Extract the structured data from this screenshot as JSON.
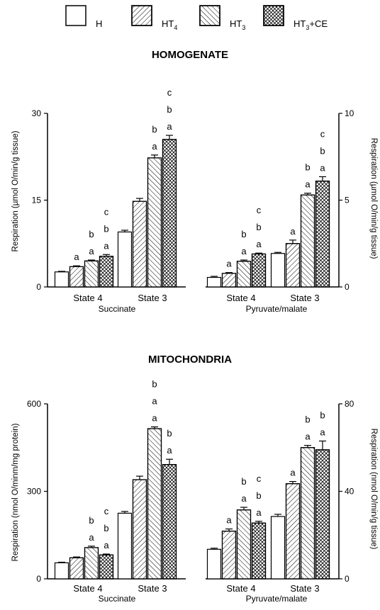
{
  "legend": [
    {
      "key": "H",
      "label": "H",
      "pattern": "none"
    },
    {
      "key": "HT4",
      "label": "HT",
      "sub": "4",
      "pattern": "diag-right"
    },
    {
      "key": "HT3",
      "label": "HT",
      "sub": "3",
      "pattern": "diag-left"
    },
    {
      "key": "HT3CE",
      "label": "HT",
      "sub": "3",
      "suffix": "+CE",
      "pattern": "crosshatch"
    }
  ],
  "chart_data": [
    {
      "type": "bar",
      "title": "HOMOGENATE",
      "ylabel": "Respiration (µmol O/min/g tissue)",
      "ylabel_right": "Respiration (µmol O/min/g tissue)",
      "ylim": [
        0,
        30
      ],
      "ylim_right": [
        0,
        10
      ],
      "yticks": [
        0,
        15,
        30
      ],
      "yticks_right": [
        0,
        5,
        10
      ],
      "series_names": [
        "H",
        "HT4",
        "HT3",
        "HT3+CE"
      ],
      "groups": [
        {
          "substrate": "Succinate",
          "state": "State 4",
          "axis": "left",
          "values": [
            2.6,
            3.5,
            4.5,
            5.3
          ],
          "errors": [
            0.1,
            0.15,
            0.15,
            0.3
          ],
          "letters": [
            [],
            [
              "a"
            ],
            [
              "b",
              "a"
            ],
            [
              "c",
              "b",
              "a"
            ]
          ]
        },
        {
          "substrate": "Succinate",
          "state": "State 3",
          "axis": "left",
          "values": [
            9.5,
            14.8,
            22.3,
            25.5
          ],
          "errors": [
            0.3,
            0.5,
            0.5,
            0.7
          ],
          "letters": [
            [],
            [],
            [
              "b",
              "a"
            ],
            [
              "c",
              "b",
              "a"
            ]
          ]
        },
        {
          "substrate": "Pyruvate/malate",
          "state": "State 4",
          "axis": "right",
          "values": [
            0.55,
            0.78,
            1.48,
            1.9
          ],
          "errors": [
            0.06,
            0.05,
            0.07,
            0.05
          ],
          "letters": [
            [],
            [
              "a"
            ],
            [
              "b",
              "a"
            ],
            [
              "c",
              "b",
              "a"
            ]
          ]
        },
        {
          "substrate": "Pyruvate/malate",
          "state": "State 3",
          "axis": "right",
          "values": [
            1.93,
            2.5,
            5.3,
            6.1
          ],
          "errors": [
            0.06,
            0.2,
            0.1,
            0.25
          ],
          "letters": [
            [],
            [
              "a"
            ],
            [
              "b",
              "a"
            ],
            [
              "c",
              "b",
              "a"
            ]
          ]
        }
      ],
      "categories": [
        "State 4",
        "State 3",
        "State 4",
        "State 3"
      ],
      "substrates": [
        "Succinate",
        "Pyruvate/malate"
      ]
    },
    {
      "type": "bar",
      "title": "MITOCHONDRIA",
      "ylabel": "Respiration (nmol O/minm/mg protein)",
      "ylabel_right": "Respiration (nmol O/min/g tissue)",
      "ylim": [
        0,
        600
      ],
      "ylim_right": [
        0,
        80
      ],
      "yticks": [
        0,
        300,
        600
      ],
      "yticks_right": [
        0,
        40,
        80
      ],
      "series_names": [
        "H",
        "HT4",
        "HT3",
        "HT3+CE"
      ],
      "groups": [
        {
          "substrate": "Succinate",
          "state": "State 4",
          "axis": "left",
          "values": [
            55,
            72,
            107,
            82
          ],
          "errors": [
            2,
            3,
            5,
            3
          ],
          "letters": [
            [],
            [],
            [
              "b",
              "a"
            ],
            [
              "c",
              "b",
              "a"
            ]
          ]
        },
        {
          "substrate": "Succinate",
          "state": "State 3",
          "axis": "left",
          "values": [
            225,
            340,
            515,
            392
          ],
          "errors": [
            6,
            12,
            6,
            18
          ],
          "letters": [
            [],
            [],
            [
              "b",
              "a",
              "a"
            ],
            [
              "b",
              "a"
            ]
          ]
        },
        {
          "substrate": "Pyruvate/malate",
          "state": "State 4",
          "axis": "right",
          "values": [
            13.5,
            21.8,
            31.5,
            25.5
          ],
          "errors": [
            0.5,
            1.0,
            1.2,
            0.8
          ],
          "letters": [
            [],
            [
              "a"
            ],
            [
              "b",
              "a"
            ],
            [
              "c",
              "b",
              "a"
            ]
          ]
        },
        {
          "substrate": "Pyruvate/malate",
          "state": "State 3",
          "axis": "right",
          "values": [
            28.5,
            43.5,
            60.0,
            59.0
          ],
          "errors": [
            1.0,
            1.0,
            1.0,
            4.0
          ],
          "letters": [
            [],
            [
              "a"
            ],
            [
              "b",
              "a"
            ],
            [
              "b",
              "a"
            ]
          ]
        }
      ],
      "categories": [
        "State 4",
        "State 3",
        "State 4",
        "State 3"
      ],
      "substrates": [
        "Succinate",
        "Pyruvate/malate"
      ]
    }
  ]
}
